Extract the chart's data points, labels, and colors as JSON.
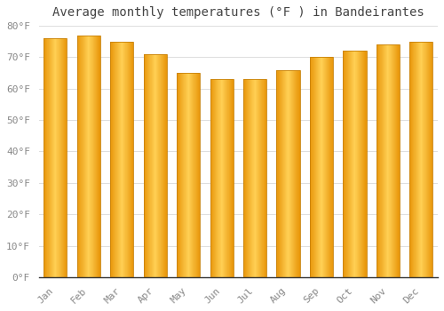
{
  "title": "Average monthly temperatures (°F ) in Bandeirantes",
  "months": [
    "Jan",
    "Feb",
    "Mar",
    "Apr",
    "May",
    "Jun",
    "Jul",
    "Aug",
    "Sep",
    "Oct",
    "Nov",
    "Dec"
  ],
  "values": [
    76,
    77,
    75,
    71,
    65,
    63,
    63,
    66,
    70,
    72,
    74,
    75
  ],
  "ylim": [
    0,
    80
  ],
  "yticks": [
    0,
    10,
    20,
    30,
    40,
    50,
    60,
    70,
    80
  ],
  "bar_color_main": "#F5A623",
  "bar_color_center": "#FFD055",
  "bar_color_edge": "#E8960A",
  "background_color": "#FFFFFF",
  "grid_color": "#DDDDDD",
  "title_fontsize": 10,
  "tick_fontsize": 8,
  "title_color": "#444444",
  "tick_color": "#888888",
  "bar_width": 0.7
}
